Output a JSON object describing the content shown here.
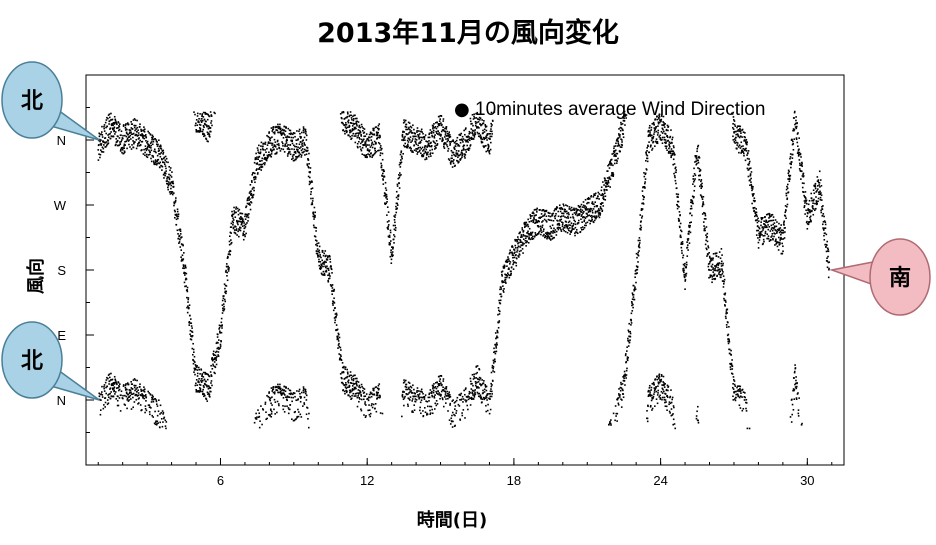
{
  "chart_data": {
    "type": "scatter",
    "title": "2013年11月の風向変化",
    "xlabel": "時間(日)",
    "ylabel": "風向",
    "xlim": [
      0.5,
      31.5
    ],
    "ylim": [
      -90,
      450
    ],
    "x_ticks": [
      6,
      12,
      18,
      24,
      30
    ],
    "y_ticks": [
      {
        "value": 0,
        "label": "N"
      },
      {
        "value": 90,
        "label": "E"
      },
      {
        "value": 180,
        "label": "S"
      },
      {
        "value": 270,
        "label": "W"
      },
      {
        "value": 360,
        "label": "N"
      }
    ],
    "grid": false,
    "legend": {
      "position": "top-right",
      "marker": "●",
      "label": "10minutes average Wind Direction"
    },
    "series": [
      {
        "name": "10minutes average Wind Direction",
        "color": "#000000",
        "x_start": 1.0,
        "x_end": 30.9,
        "direction_keyframes": [
          [
            1.0,
            350
          ],
          [
            1.5,
            20
          ],
          [
            2.0,
            360
          ],
          [
            2.5,
            10
          ],
          [
            3.0,
            355
          ],
          [
            3.5,
            340
          ],
          [
            4.0,
            300
          ],
          [
            4.5,
            190
          ],
          [
            5.0,
            30
          ],
          [
            5.5,
            15
          ],
          [
            6.0,
            90
          ],
          [
            6.5,
            250
          ],
          [
            7.0,
            240
          ],
          [
            7.5,
            330
          ],
          [
            8.0,
            355
          ],
          [
            8.5,
            5
          ],
          [
            9.0,
            350
          ],
          [
            9.5,
            360
          ],
          [
            10.0,
            200
          ],
          [
            10.5,
            180
          ],
          [
            11.0,
            30
          ],
          [
            11.5,
            15
          ],
          [
            12.0,
            350
          ],
          [
            12.5,
            5
          ],
          [
            13.0,
            200
          ],
          [
            13.5,
            10
          ],
          [
            14.0,
            360
          ],
          [
            14.5,
            350
          ],
          [
            15.0,
            20
          ],
          [
            15.5,
            340
          ],
          [
            16.0,
            355
          ],
          [
            16.5,
            30
          ],
          [
            17.0,
            350
          ],
          [
            17.5,
            160
          ],
          [
            18.0,
            200
          ],
          [
            18.5,
            230
          ],
          [
            19.0,
            250
          ],
          [
            19.5,
            240
          ],
          [
            20.0,
            255
          ],
          [
            20.5,
            245
          ],
          [
            21.0,
            260
          ],
          [
            21.5,
            270
          ],
          [
            22.0,
            320
          ],
          [
            22.5,
            20
          ],
          [
            23.0,
            180
          ],
          [
            23.5,
            360
          ],
          [
            24.0,
            20
          ],
          [
            24.5,
            350
          ],
          [
            25.0,
            170
          ],
          [
            25.5,
            350
          ],
          [
            26.0,
            180
          ],
          [
            26.5,
            190
          ],
          [
            27.0,
            10
          ],
          [
            27.5,
            350
          ],
          [
            28.0,
            230
          ],
          [
            28.5,
            240
          ],
          [
            29.0,
            220
          ],
          [
            29.5,
            30
          ],
          [
            30.0,
            250
          ],
          [
            30.5,
            300
          ],
          [
            30.9,
            180
          ]
        ]
      }
    ],
    "annotations": [
      {
        "text": "北",
        "target": {
          "x": 0.8,
          "y": 360
        },
        "color": "#a9d2e6",
        "side": "left"
      },
      {
        "text": "北",
        "target": {
          "x": 0.8,
          "y": 0
        },
        "color": "#a9d2e6",
        "side": "left"
      },
      {
        "text": "南",
        "target": {
          "x": 31.0,
          "y": 180
        },
        "color": "#f2bcc2",
        "side": "right"
      }
    ]
  }
}
